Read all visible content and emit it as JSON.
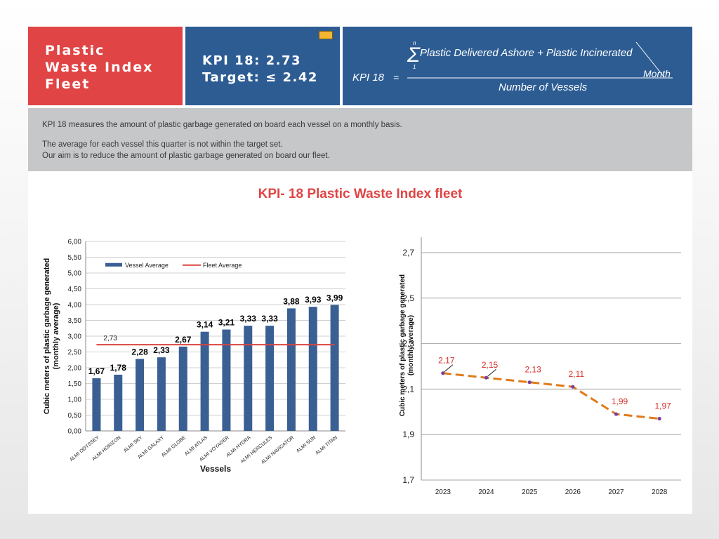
{
  "header": {
    "left_lines": [
      "Plastic",
      "Waste Index",
      "Fleet"
    ],
    "kpi_line": "KPI 18: 2.73",
    "target_line": "Target: ≤ 2.42",
    "formula": {
      "lhs": "KPI  18",
      "equals": "=",
      "sigma_top": "n",
      "sigma_bottom": "1",
      "numerator": "Plastic Delivered Ashore  +  Plastic Incinerated",
      "per": "Month",
      "denominator": "Number of Vessels"
    }
  },
  "description": {
    "line1": "KPI 18 measures the amount of plastic garbage generated on board each vessel on a monthly basis.",
    "line2": "The average for each vessel this quarter is not within the target set.",
    "line3": "Our aim is to reduce the amount of plastic garbage generated on board our fleet."
  },
  "main_title": "KPI- 18 Plastic Waste Index fleet",
  "colors": {
    "red": "#e04444",
    "blue": "#2d5c93",
    "bar": "#3a5f93",
    "line_orange": "#e07b1a",
    "fleet_line": "#d9443f"
  },
  "chart_data": [
    {
      "type": "bar",
      "xlabel": "Vessels",
      "ylabel": "Cubic meters of plastic garbage generated (monthly average)",
      "ylim": [
        0,
        6
      ],
      "ytick_step": 0.5,
      "grid": true,
      "legend": [
        "Vessel Average",
        "Fleet Average"
      ],
      "legend_position": "top-left",
      "categories": [
        "ALMI ODYSSEY",
        "ALMI HORIZON",
        "ALMI SKY",
        "ALMI GALAXY",
        "ALMI GLOBE",
        "ALMI ATLAS",
        "ALMI VOYAGER",
        "ALMI HYDRA",
        "ALMI HERCULES",
        "ALMI NAVIGATOR",
        "ALMI SUN",
        "ALMI TITAN"
      ],
      "series": [
        {
          "name": "Vessel Average",
          "values": [
            1.67,
            1.78,
            2.28,
            2.33,
            2.67,
            3.14,
            3.21,
            3.33,
            3.33,
            3.88,
            3.93,
            3.99
          ],
          "labels": [
            "1,67",
            "1,78",
            "2,28",
            "2,33",
            "2,67",
            "3,14",
            "3,21",
            "3,33",
            "3,33",
            "3,88",
            "3,93",
            "3,99"
          ]
        },
        {
          "name": "Fleet Average",
          "value": 2.73,
          "label": "2,73"
        }
      ]
    },
    {
      "type": "line",
      "ylabel": "Cubic meters of plastic garbage generated (monthly average)",
      "ylim": [
        1.7,
        2.7
      ],
      "yticks": [
        1.7,
        1.9,
        2.1,
        2.3,
        2.5,
        2.7
      ],
      "grid": true,
      "x": [
        "2023",
        "2024",
        "2025",
        "2026",
        "2027",
        "2028"
      ],
      "values": [
        2.17,
        2.15,
        2.13,
        2.11,
        1.99,
        1.97
      ],
      "labels": [
        "2,17",
        "2,15",
        "2,13",
        "2,11",
        "1,99",
        "1,97"
      ]
    }
  ]
}
